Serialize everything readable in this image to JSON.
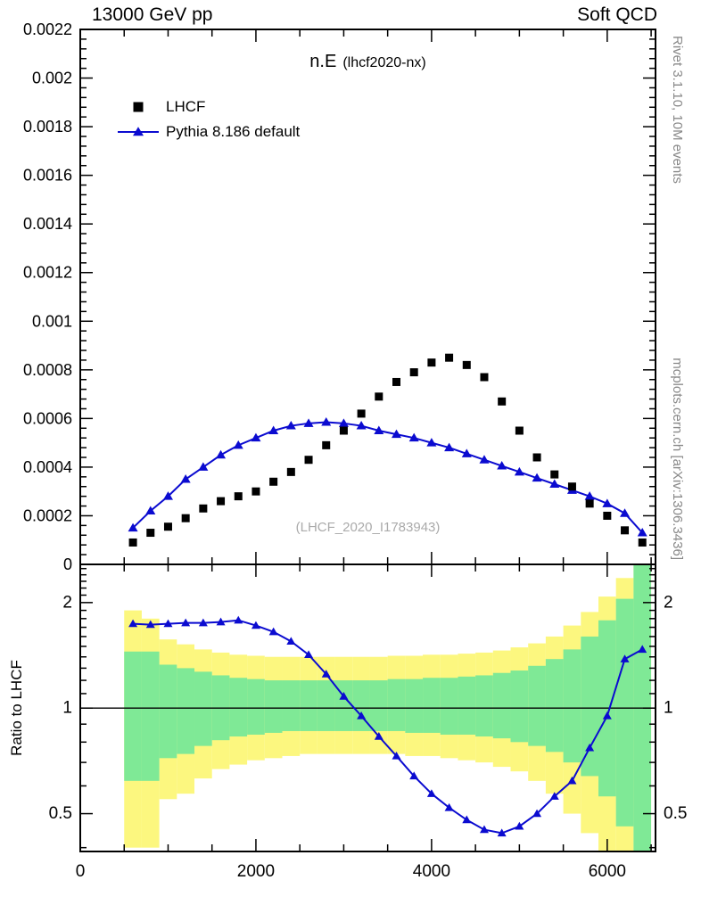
{
  "header": {
    "left": "13000 GeV pp",
    "right": "Soft QCD"
  },
  "title": {
    "main": "n.E",
    "sub": "(lhcf2020-nx)"
  },
  "watermark": "(LHCF_2020_I1783943)",
  "side_labels": {
    "top_right": "Rivet 3.1.10,  10M events",
    "bottom_right": "mcplots.cern.ch [arXiv:1306.3436]"
  },
  "colors": {
    "pythia_blue": "#0b0bd0",
    "band_yellow": "#fcf77f",
    "band_green": "#7fe996",
    "watermark_gray": "#aaaaaa",
    "side_text_gray": "#888888",
    "frame_black": "#000000"
  },
  "chart_data": [
    {
      "type": "scatter",
      "panel": "main",
      "title": "n.E (lhcf2020-nx)",
      "xlim": [
        0,
        6550
      ],
      "ylim": [
        0,
        0.0022
      ],
      "xticks": [
        0,
        2000,
        4000,
        6000
      ],
      "xtick_labels": [
        "0",
        "2000",
        "4000",
        "6000"
      ],
      "yticks": [
        0,
        0.0002,
        0.0004,
        0.0006,
        0.0008,
        0.001,
        0.0012,
        0.0014,
        0.0016,
        0.0018,
        0.002,
        0.0022
      ],
      "ytick_labels": [
        "0",
        "0.0002",
        "0.0004",
        "0.0006",
        "0.0008",
        "0.001",
        "0.0012",
        "0.0014",
        "0.0016",
        "0.0018",
        "0.002",
        "0.0022"
      ],
      "x": [
        600,
        800,
        1000,
        1200,
        1400,
        1600,
        1800,
        2000,
        2200,
        2400,
        2600,
        2800,
        3000,
        3200,
        3400,
        3600,
        3800,
        4000,
        4200,
        4400,
        4600,
        4800,
        5000,
        5200,
        5400,
        5600,
        5800,
        6000,
        6200,
        6400
      ],
      "series": [
        {
          "name": "LHCF",
          "marker": "square",
          "color": "#000000",
          "values": [
            9e-05,
            0.00013,
            0.000155,
            0.00019,
            0.00023,
            0.00026,
            0.00028,
            0.0003,
            0.00034,
            0.00038,
            0.00043,
            0.00049,
            0.00055,
            0.00062,
            0.00069,
            0.00075,
            0.00079,
            0.00083,
            0.00085,
            0.00082,
            0.00077,
            0.00067,
            0.00055,
            0.00044,
            0.00037,
            0.00032,
            0.00025,
            0.0002,
            0.00014,
            9e-05
          ]
        },
        {
          "name": "Pythia 8.186 default",
          "marker": "triangle",
          "line": true,
          "color": "#0b0bd0",
          "values": [
            0.00015,
            0.00022,
            0.00028,
            0.00035,
            0.0004,
            0.00045,
            0.00049,
            0.00052,
            0.00055,
            0.00057,
            0.00058,
            0.000585,
            0.00058,
            0.00057,
            0.00055,
            0.000535,
            0.00052,
            0.0005,
            0.00048,
            0.000455,
            0.00043,
            0.000405,
            0.00038,
            0.000355,
            0.00033,
            0.000305,
            0.00028,
            0.00025,
            0.00021,
            0.00013
          ]
        }
      ]
    },
    {
      "type": "ratio",
      "panel": "ratio",
      "ylabel": "Ratio to LHCF",
      "yscale": "log",
      "ylim": [
        0.39,
        2.57
      ],
      "yticks": [
        0.5,
        1,
        2
      ],
      "ytick_labels": [
        "0.5",
        "1",
        "2"
      ],
      "reference_line": 1,
      "x": [
        600,
        800,
        1000,
        1200,
        1400,
        1600,
        1800,
        2000,
        2200,
        2400,
        2600,
        2800,
        3000,
        3200,
        3400,
        3600,
        3800,
        4000,
        4200,
        4400,
        4600,
        4800,
        5000,
        5200,
        5400,
        5600,
        5800,
        6000,
        6200,
        6400
      ],
      "ratio": [
        1.74,
        1.73,
        1.74,
        1.75,
        1.75,
        1.76,
        1.78,
        1.72,
        1.65,
        1.55,
        1.42,
        1.25,
        1.08,
        0.95,
        0.83,
        0.73,
        0.64,
        0.57,
        0.52,
        0.48,
        0.45,
        0.44,
        0.46,
        0.5,
        0.56,
        0.62,
        0.77,
        0.95,
        1.38,
        1.47
      ],
      "band_yellow": {
        "lo": [
          0.4,
          0.4,
          0.55,
          0.57,
          0.63,
          0.67,
          0.69,
          0.71,
          0.72,
          0.73,
          0.74,
          0.74,
          0.74,
          0.74,
          0.74,
          0.74,
          0.73,
          0.73,
          0.72,
          0.71,
          0.7,
          0.68,
          0.66,
          0.62,
          0.57,
          0.5,
          0.44,
          0.39,
          0.34,
          0.3
        ],
        "hi": [
          1.9,
          1.8,
          1.57,
          1.52,
          1.47,
          1.44,
          1.42,
          1.41,
          1.4,
          1.4,
          1.4,
          1.4,
          1.4,
          1.4,
          1.4,
          1.41,
          1.41,
          1.42,
          1.42,
          1.43,
          1.44,
          1.46,
          1.49,
          1.53,
          1.6,
          1.72,
          1.88,
          2.08,
          2.35,
          2.57
        ]
      },
      "band_green": {
        "lo": [
          0.62,
          0.62,
          0.72,
          0.74,
          0.78,
          0.81,
          0.83,
          0.84,
          0.85,
          0.86,
          0.86,
          0.86,
          0.86,
          0.86,
          0.86,
          0.86,
          0.85,
          0.85,
          0.84,
          0.84,
          0.83,
          0.82,
          0.8,
          0.78,
          0.75,
          0.7,
          0.64,
          0.56,
          0.46,
          0.3
        ],
        "hi": [
          1.45,
          1.45,
          1.33,
          1.3,
          1.27,
          1.24,
          1.22,
          1.21,
          1.2,
          1.2,
          1.2,
          1.2,
          1.2,
          1.2,
          1.2,
          1.21,
          1.21,
          1.22,
          1.22,
          1.23,
          1.24,
          1.26,
          1.28,
          1.32,
          1.38,
          1.47,
          1.6,
          1.78,
          2.05,
          2.57
        ]
      }
    }
  ]
}
